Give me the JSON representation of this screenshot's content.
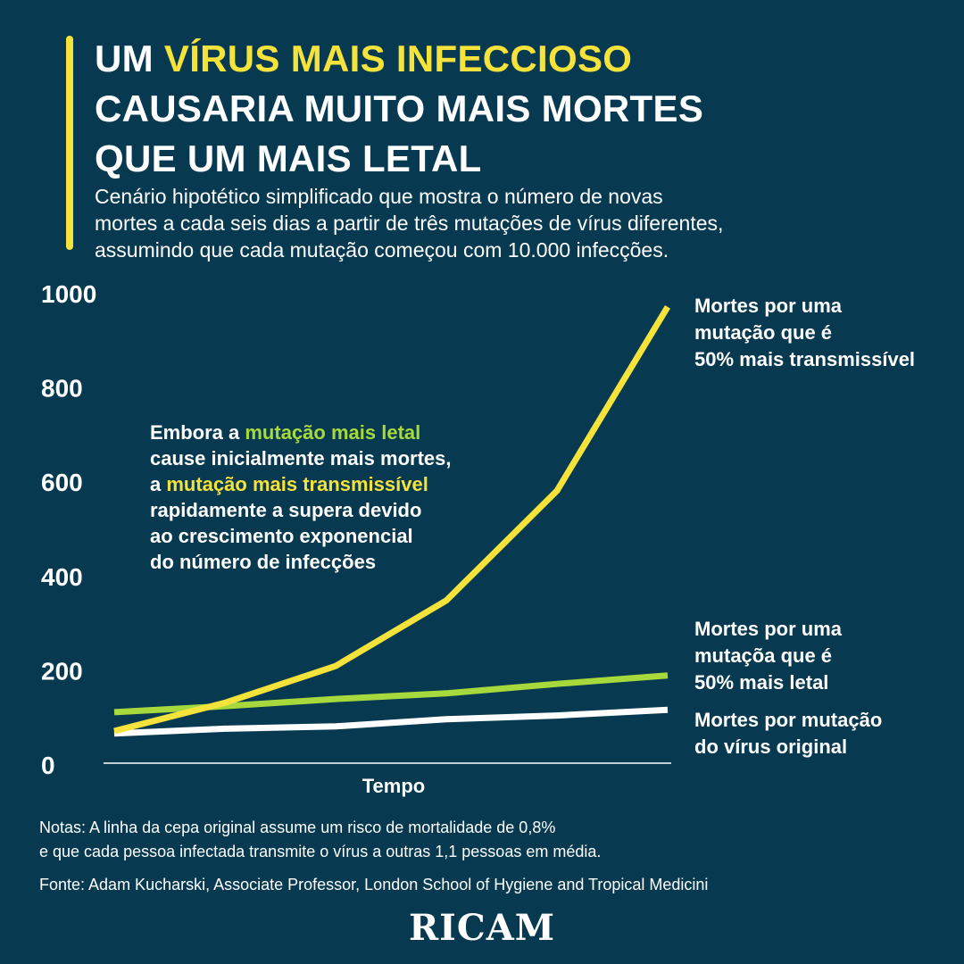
{
  "header": {
    "title_part1": "UM ",
    "title_highlight": "VÍRUS MAIS INFECCIOSO",
    "title_line2": "CAUSARIA MUITO MAIS MORTES",
    "title_line3": "QUE UM MAIS LETAL",
    "subtitle_line1": "Cenário hipotético simplificado que mostra o número de novas",
    "subtitle_line2": "mortes a cada seis dias a partir de três mutações de vírus diferentes,",
    "subtitle_line3": "assumindo que cada mutação começou com 10.000 infecções."
  },
  "annotation": {
    "l1_pre": "Embora a ",
    "l1_hl": "mutação mais letal",
    "l2": "cause inicialmente mais mortes,",
    "l3_pre": "a ",
    "l3_hl": "mutação mais transmissível",
    "l4": "rapidamente a supera devido",
    "l5": "ao crescimento exponencial",
    "l6": "do número de infecções"
  },
  "series_labels": {
    "transmissible": [
      "Mortes por uma",
      "mutação que é",
      "50% mais transmissível"
    ],
    "lethal": [
      "Mortes por uma",
      "mutaçõa que é",
      "50% mais letal"
    ],
    "original": [
      "Mortes por mutação",
      "do vírus original"
    ]
  },
  "footer": {
    "notes_line1": "Notas: A linha da cepa original assume um risco de mortalidade de 0,8%",
    "notes_line2": "e que cada pessoa infectada transmite o vírus a outras 1,1 pessoas em média.",
    "source": "Fonte: Adam Kucharski, Associate Professor, London School of Hygiene and Tropical Medicini",
    "logo": "RICAM"
  },
  "colors": {
    "background": "#073a50",
    "transmissible": "#f5e23a",
    "lethal": "#a8d93c",
    "original": "#ffffff"
  },
  "chart_data": {
    "type": "line",
    "xlabel": "Tempo",
    "ylabel": "",
    "ylim": [
      0,
      1000
    ],
    "yticks": [
      0,
      200,
      400,
      600,
      800,
      1000
    ],
    "x": [
      0,
      1,
      2,
      3,
      4,
      5
    ],
    "series": [
      {
        "name": "Mortes por uma mutação que é 50% mais transmissível",
        "color": "#f5e23a",
        "values": [
          70,
          130,
          208,
          347,
          580,
          970
        ]
      },
      {
        "name": "Mortes por uma mutaçõa que é 50% mais letal",
        "color": "#a8d93c",
        "values": [
          110,
          123,
          138,
          150,
          170,
          188
        ]
      },
      {
        "name": "Mortes por mutação do vírus original",
        "color": "#ffffff",
        "values": [
          65,
          75,
          80,
          95,
          103,
          115
        ]
      }
    ],
    "grid": false
  }
}
